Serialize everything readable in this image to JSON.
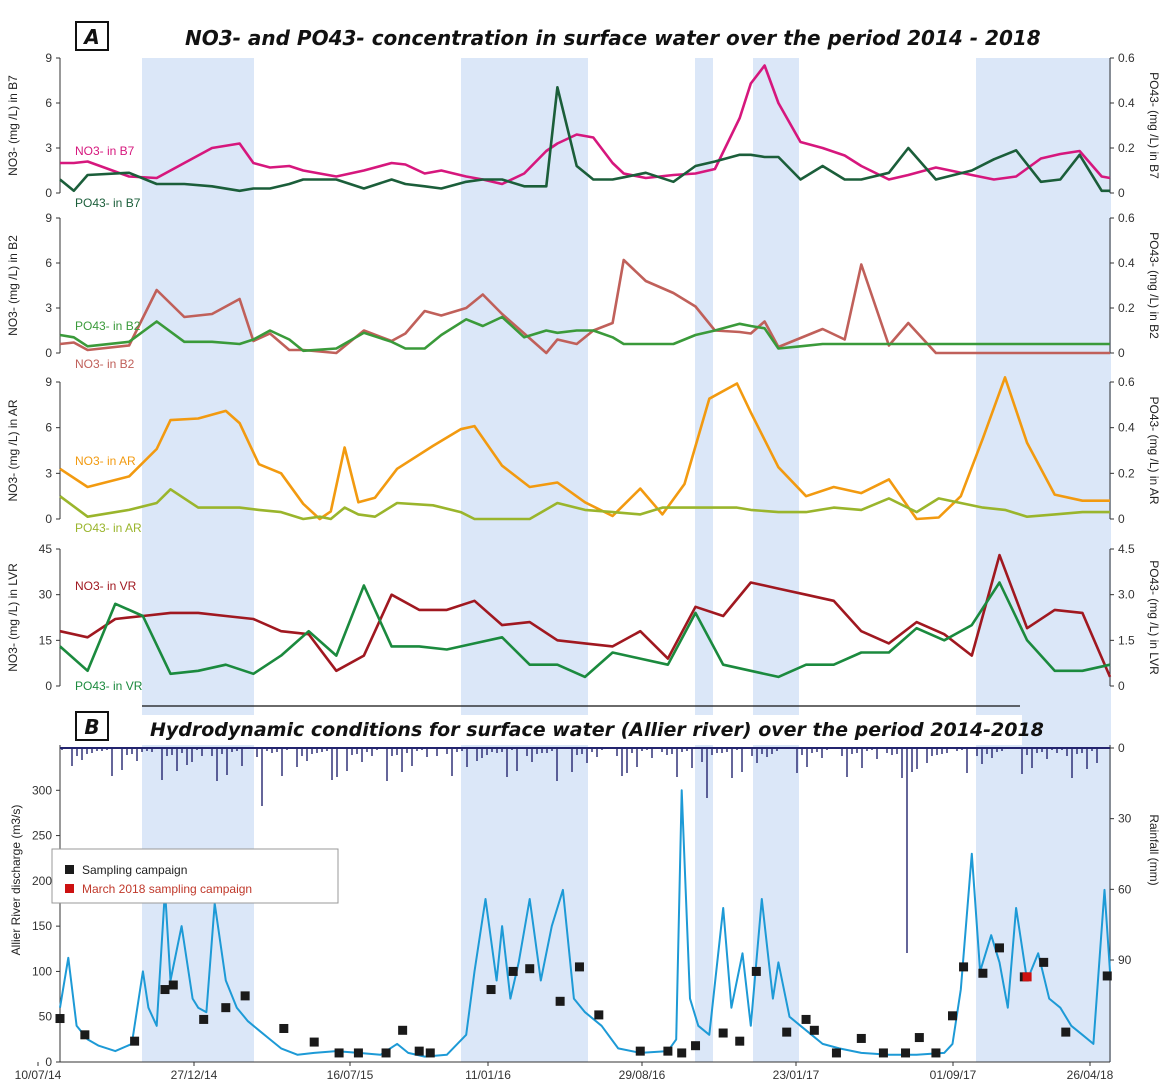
{
  "panel_a": {
    "letter": "A",
    "title": "NO3- and PO43- concentration in surface water over the period 2014 - 2018"
  },
  "panel_b": {
    "letter": "B",
    "title": "Hydrodynamic conditions for surface water (Allier river) over the period 2014-2018",
    "legend": [
      "Sampling campaign",
      "March 2018 sampling campaign"
    ]
  },
  "x_dates": [
    "10/07/14",
    "27/12/14",
    "16/07/15",
    "11/01/16",
    "29/08/16",
    "23/01/17",
    "01/09/17",
    "26/04/18"
  ],
  "colors": {
    "shade": "#dbe7f8",
    "no3_b7": "#d6177d",
    "po4_b7": "#1b5e3a",
    "no3_b2": "#c0605a",
    "po4_b2": "#3a9a3a",
    "no3_ar": "#f29a10",
    "po4_ar": "#9ab52c",
    "no3_vr": "#a01820",
    "po4_vr": "#1b8a3e",
    "discharge": "#1d9ad6",
    "rainfall": "#23246e",
    "sample": "#1a1a1a",
    "sample_march": "#cc1111"
  },
  "chart_data": [
    {
      "type": "line",
      "panel": "A-B7",
      "ylabel_left": "NO3- (mg /L) in B7",
      "ylabel_right": "PO43- (mg /L) in B7",
      "yticks_left": [
        "0",
        "3",
        "6",
        "9"
      ],
      "yticks_right": [
        "0",
        "0.2",
        "0.4",
        "0.6"
      ],
      "ylim_left": [
        0,
        9
      ],
      "ylim_right": [
        0,
        0.6
      ],
      "x": [
        0.0,
        0.5,
        1.0,
        2.5,
        3.5,
        4.5,
        5.5,
        6.5,
        7.0,
        7.6,
        8.3,
        8.8,
        10.0,
        11.0,
        12.0,
        12.5,
        13.2,
        13.8,
        14.7,
        15.3,
        16.0,
        16.8,
        17.6,
        18.0,
        18.7,
        19.3,
        20.0,
        20.4,
        21.2,
        22.2,
        23.0,
        23.7,
        24.6,
        25.0,
        25.5,
        26.0,
        26.8,
        27.6,
        28.4,
        29.0,
        30.0,
        30.7,
        31.7,
        33.0,
        33.8,
        34.6,
        35.5,
        36.2,
        36.9,
        37.7,
        38.0
      ],
      "series": [
        {
          "name": "NO3- in B7",
          "values": [
            2.0,
            2.0,
            2.1,
            1.1,
            1.0,
            2.0,
            3.0,
            3.3,
            2.0,
            1.7,
            1.8,
            1.5,
            1.1,
            1.5,
            2.0,
            1.9,
            1.3,
            1.5,
            1.1,
            0.9,
            0.6,
            1.3,
            2.8,
            3.3,
            3.9,
            3.7,
            2.0,
            1.3,
            1.0,
            1.2,
            1.3,
            1.6,
            5.0,
            7.3,
            8.5,
            6.0,
            3.4,
            3.0,
            2.5,
            1.8,
            0.9,
            1.2,
            1.7,
            1.2,
            0.9,
            1.1,
            2.3,
            2.6,
            2.8,
            1.1,
            1.0
          ]
        },
        {
          "name": "PO43- in B7",
          "values": [
            0.06,
            0.01,
            0.08,
            0.09,
            0.04,
            0.04,
            0.03,
            0.01,
            0.02,
            0.02,
            0.04,
            0.06,
            0.06,
            0.02,
            0.06,
            0.04,
            0.03,
            0.02,
            0.05,
            0.06,
            0.06,
            0.03,
            0.03,
            0.47,
            0.12,
            0.06,
            0.06,
            0.07,
            0.09,
            0.05,
            0.12,
            0.14,
            0.17,
            0.17,
            0.16,
            0.16,
            0.06,
            0.12,
            0.06,
            0.06,
            0.09,
            0.2,
            0.06,
            0.1,
            0.15,
            0.19,
            0.05,
            0.06,
            0.17,
            0.01,
            0.01
          ]
        }
      ]
    },
    {
      "type": "line",
      "panel": "A-B2",
      "ylabel_left": "NO3- (mg /L) in B2",
      "ylabel_right": "PO43- (mg /L) in B2",
      "yticks_left": [
        "0",
        "3",
        "6",
        "9"
      ],
      "yticks_right": [
        "0",
        "0.2",
        "0.4",
        "0.6"
      ],
      "ylim_left": [
        0,
        9
      ],
      "ylim_right": [
        0,
        0.6
      ],
      "x": [
        0.0,
        0.5,
        1.0,
        2.5,
        3.5,
        4.5,
        5.5,
        6.5,
        7.0,
        7.6,
        8.3,
        8.8,
        10.0,
        11.0,
        12.0,
        12.5,
        13.2,
        13.8,
        14.7,
        15.3,
        16.0,
        16.8,
        17.6,
        18.0,
        18.7,
        19.3,
        20.0,
        20.4,
        21.2,
        22.2,
        23.0,
        23.7,
        24.6,
        25.0,
        25.5,
        26.0,
        26.8,
        27.6,
        28.4,
        29.0,
        30.0,
        30.7,
        31.7,
        33.0,
        33.8,
        34.6,
        35.5,
        36.2,
        36.9,
        37.7,
        38.0
      ],
      "series": [
        {
          "name": "NO3- in B2",
          "values": [
            0.6,
            0.7,
            0.2,
            0.5,
            4.2,
            2.4,
            2.6,
            3.6,
            0.8,
            1.3,
            0.2,
            0.2,
            0.0,
            1.5,
            0.8,
            1.3,
            2.8,
            2.5,
            3.0,
            3.9,
            2.6,
            1.3,
            0.0,
            0.9,
            0.6,
            1.5,
            2.0,
            6.2,
            4.8,
            4.0,
            3.1,
            1.5,
            1.4,
            1.3,
            2.1,
            0.4,
            1.0,
            1.6,
            0.9,
            5.9,
            0.5,
            2.0,
            0.0,
            0.0,
            0.0,
            0.0,
            0.0,
            0.0,
            0.0,
            0.0,
            0.0
          ]
        },
        {
          "name": "PO43- in B2",
          "values": [
            0.08,
            0.07,
            0.03,
            0.05,
            0.14,
            0.05,
            0.05,
            0.04,
            0.06,
            0.1,
            0.06,
            0.01,
            0.02,
            0.09,
            0.05,
            0.02,
            0.02,
            0.08,
            0.15,
            0.12,
            0.16,
            0.07,
            0.1,
            0.09,
            0.1,
            0.1,
            0.07,
            0.04,
            0.04,
            0.04,
            0.08,
            0.1,
            0.13,
            0.12,
            0.11,
            0.02,
            0.03,
            0.04,
            0.04,
            0.04,
            0.04,
            0.04,
            0.04,
            0.04,
            0.04,
            0.04,
            0.04,
            0.04,
            0.04,
            0.04,
            0.04
          ]
        }
      ]
    },
    {
      "type": "line",
      "panel": "A-AR",
      "ylabel_left": "NO3- (mg /L) in AR",
      "ylabel_right": "PO43- (mg /L) in AR",
      "yticks_left": [
        "0",
        "3",
        "6",
        "9"
      ],
      "yticks_right": [
        "0",
        "0.2",
        "0.4",
        "0.6"
      ],
      "ylim_left": [
        0,
        9
      ],
      "ylim_right": [
        0,
        0.6
      ],
      "x": [
        0.0,
        1.0,
        2.5,
        3.5,
        4.0,
        5.0,
        6.0,
        6.5,
        7.2,
        8.0,
        8.8,
        9.4,
        9.8,
        10.3,
        10.8,
        11.4,
        12.2,
        13.5,
        14.5,
        15.0,
        16.0,
        17.0,
        18.0,
        19.0,
        20.0,
        21.0,
        21.8,
        22.6,
        23.5,
        24.5,
        25.0,
        26.0,
        27.0,
        28.0,
        29.0,
        30.0,
        31.0,
        31.8,
        32.6,
        33.4,
        34.2,
        35.0,
        36.0,
        37.0,
        38.0
      ],
      "series": [
        {
          "name": "NO3- in AR",
          "values": [
            3.3,
            2.1,
            2.8,
            4.6,
            6.5,
            6.6,
            7.1,
            6.3,
            3.6,
            3.0,
            1.0,
            0.0,
            0.5,
            4.7,
            1.1,
            1.4,
            3.3,
            4.8,
            5.9,
            6.1,
            3.5,
            2.1,
            2.4,
            1.1,
            0.2,
            2.0,
            0.3,
            2.3,
            7.9,
            8.9,
            7.0,
            3.4,
            1.5,
            2.1,
            1.7,
            2.6,
            0.0,
            0.1,
            1.5,
            5.3,
            9.3,
            5.0,
            1.6,
            1.2,
            1.2
          ]
        },
        {
          "name": "PO43- in AR",
          "values": [
            0.1,
            0.01,
            0.04,
            0.07,
            0.13,
            0.05,
            0.05,
            0.05,
            0.04,
            0.03,
            0.0,
            0.01,
            0.0,
            0.05,
            0.02,
            0.01,
            0.07,
            0.06,
            0.03,
            0.0,
            0.0,
            0.0,
            0.07,
            0.04,
            0.03,
            0.02,
            0.05,
            0.05,
            0.05,
            0.05,
            0.04,
            0.03,
            0.03,
            0.05,
            0.04,
            0.09,
            0.03,
            0.09,
            0.07,
            0.05,
            0.04,
            0.01,
            0.02,
            0.03,
            0.03
          ]
        }
      ]
    },
    {
      "type": "line",
      "panel": "A-VR",
      "ylabel_left": "NO3- (mg /L) in LVR",
      "ylabel_right": "PO43- (mg /L) in LVR",
      "yticks_left": [
        "0",
        "15",
        "30",
        "45"
      ],
      "yticks_right": [
        "0",
        "1.5",
        "3.0",
        "4.5"
      ],
      "ylim_left": [
        0,
        45
      ],
      "ylim_right": [
        0,
        4.5
      ],
      "x": [
        0.0,
        1.0,
        2.0,
        3.0,
        4.0,
        5.0,
        6.0,
        7.0,
        8.0,
        9.0,
        10.0,
        11.0,
        12.0,
        13.0,
        14.0,
        15.0,
        16.0,
        17.0,
        18.0,
        19.0,
        20.0,
        21.0,
        22.0,
        23.0,
        24.0,
        25.0,
        26.0,
        27.0,
        28.0,
        29.0,
        30.0,
        31.0,
        32.0,
        33.0,
        34.0,
        35.0,
        36.0,
        37.0,
        38.0
      ],
      "series": [
        {
          "name": "NO3- in VR",
          "values": [
            18,
            16,
            22,
            23,
            24,
            24,
            23,
            22,
            18,
            17,
            5,
            10,
            30,
            25,
            25,
            28,
            20,
            21,
            15,
            14,
            13,
            18,
            9,
            26,
            23,
            34,
            32,
            30,
            28,
            18,
            14,
            21,
            17,
            10,
            43,
            19,
            25,
            24,
            3
          ]
        },
        {
          "name": "PO43- in VR",
          "values": [
            1.3,
            0.5,
            2.7,
            2.3,
            0.4,
            0.5,
            0.7,
            0.4,
            1.0,
            1.8,
            1.0,
            3.3,
            1.3,
            1.3,
            1.2,
            1.4,
            1.6,
            0.7,
            0.7,
            0.3,
            1.1,
            0.9,
            0.7,
            2.4,
            0.7,
            0.5,
            0.3,
            0.7,
            0.7,
            1.1,
            1.1,
            1.9,
            1.5,
            2.0,
            3.4,
            1.5,
            0.5,
            0.5,
            0.7
          ]
        }
      ]
    },
    {
      "type": "line",
      "panel": "B",
      "ylabel_left": "Allier River discharge (m3/s)",
      "ylabel_right": "Rainfall (mm)",
      "yticks_left": [
        "0",
        "50",
        "100",
        "150",
        "200",
        "250",
        "300"
      ],
      "yticks_right": [
        "0",
        "30",
        "60",
        "90"
      ],
      "ylim_left": [
        0,
        350
      ],
      "x": [
        0.0,
        0.3,
        0.6,
        1.0,
        1.4,
        2.0,
        2.6,
        3.0,
        3.2,
        3.5,
        3.8,
        4.0,
        4.4,
        4.8,
        5.0,
        5.3,
        5.6,
        6.0,
        6.4,
        6.8,
        7.2,
        7.6,
        8.0,
        8.6,
        9.2,
        10.0,
        10.8,
        11.6,
        12.2,
        12.6,
        13.2,
        14.0,
        14.7,
        15.0,
        15.4,
        15.8,
        16.0,
        16.3,
        16.6,
        17.0,
        17.4,
        17.8,
        18.2,
        18.6,
        19.0,
        19.6,
        20.2,
        21.0,
        22.0,
        22.3,
        22.5,
        22.8,
        23.1,
        23.5,
        24.0,
        24.3,
        24.7,
        25.0,
        25.4,
        25.8,
        26.0,
        26.4,
        26.8,
        27.2,
        27.6,
        28.2,
        29.0,
        30.0,
        31.0,
        32.0,
        32.3,
        32.6,
        33.0,
        33.3,
        33.7,
        34.0,
        34.3,
        34.6,
        35.0,
        35.4,
        35.8,
        36.2,
        36.6,
        37.0,
        37.4,
        37.8,
        38.0
      ],
      "series": [
        {
          "name": "Allier River discharge",
          "values": [
            60,
            115,
            40,
            25,
            18,
            12,
            20,
            100,
            60,
            40,
            190,
            90,
            150,
            70,
            60,
            55,
            175,
            90,
            60,
            45,
            35,
            25,
            15,
            8,
            10,
            12,
            10,
            8,
            20,
            10,
            6,
            8,
            30,
            100,
            180,
            90,
            150,
            70,
            110,
            180,
            90,
            150,
            190,
            70,
            55,
            40,
            15,
            10,
            12,
            25,
            300,
            70,
            40,
            30,
            170,
            60,
            120,
            40,
            180,
            70,
            110,
            50,
            40,
            30,
            20,
            15,
            10,
            8,
            8,
            10,
            20,
            80,
            230,
            100,
            140,
            110,
            60,
            170,
            90,
            120,
            70,
            60,
            40,
            30,
            20,
            190,
            100
          ]
        },
        {
          "name": "Sampling campaign",
          "x": [
            0.0,
            0.9,
            2.7,
            3.8,
            4.1,
            5.2,
            6.0,
            6.7,
            8.1,
            9.2,
            10.1,
            10.8,
            11.8,
            12.4,
            13.0,
            13.4,
            15.6,
            16.4,
            17.0,
            18.1,
            18.8,
            19.5,
            21.0,
            22.0,
            22.5,
            23.0,
            24.0,
            24.6,
            25.2,
            26.3,
            27.0,
            27.3,
            28.1,
            29.0,
            29.8,
            30.6,
            31.1,
            31.7,
            32.3,
            32.7,
            33.4,
            34.0,
            34.9,
            35.6,
            36.4,
            37.9
          ],
          "values": [
            48,
            30,
            23,
            80,
            85,
            47,
            60,
            73,
            37,
            22,
            10,
            10,
            10,
            35,
            12,
            10,
            80,
            100,
            103,
            67,
            105,
            52,
            12,
            12,
            10,
            18,
            32,
            23,
            100,
            33,
            47,
            35,
            10,
            26,
            10,
            10,
            27,
            10,
            51,
            105,
            98,
            126,
            94,
            110,
            33,
            95
          ]
        },
        {
          "name": "March 2018 sampling campaign",
          "x": [
            35.0
          ],
          "values": [
            94
          ]
        }
      ]
    }
  ]
}
